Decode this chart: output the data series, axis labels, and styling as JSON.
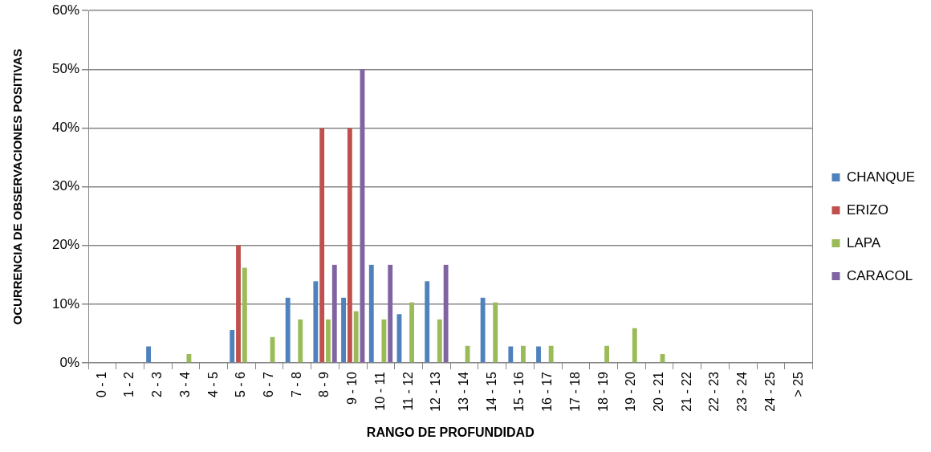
{
  "chart_data": {
    "type": "bar",
    "xlabel": "RANGO DE PROFUNDIDAD",
    "ylabel": "OCURRENCIA DE OBSERVACIONES POSITIVAS",
    "categories": [
      "0 - 1",
      "1 - 2",
      "2 - 3",
      "3 - 4",
      "4 - 5",
      "5 - 6",
      "6 - 7",
      "7 - 8",
      "8 - 9",
      "9 - 10",
      "10 - 11",
      "11 - 12",
      "12 - 13",
      "13 - 14",
      "14 - 15",
      "15 - 16",
      "16 - 17",
      "17 - 18",
      "18 - 19",
      "19 - 20",
      "20 - 21",
      "21 - 22",
      "22 - 23",
      "23 - 24",
      "24 - 25",
      "> 25"
    ],
    "series": [
      {
        "name": "CHANQUE",
        "color": "#4f81bd",
        "values": [
          0,
          0,
          2.8,
          0,
          0,
          5.6,
          0,
          11.1,
          13.9,
          11.1,
          16.7,
          8.3,
          13.9,
          0,
          11.1,
          2.8,
          2.8,
          0,
          0,
          0,
          0,
          0,
          0,
          0,
          0,
          0
        ]
      },
      {
        "name": "ERIZO",
        "color": "#c0504d",
        "values": [
          0,
          0,
          0,
          0,
          0,
          20,
          0,
          0,
          40,
          40,
          0,
          0,
          0,
          0,
          0,
          0,
          0,
          0,
          0,
          0,
          0,
          0,
          0,
          0,
          0,
          0
        ]
      },
      {
        "name": "LAPA",
        "color": "#9bbb59",
        "values": [
          0,
          0,
          0,
          1.5,
          0,
          16.2,
          4.4,
          7.4,
          7.4,
          8.8,
          7.4,
          10.3,
          7.4,
          2.9,
          10.3,
          2.9,
          2.9,
          0,
          2.9,
          5.9,
          1.5,
          0,
          0,
          0,
          0,
          0
        ]
      },
      {
        "name": "CARACOL",
        "color": "#8064a2",
        "values": [
          0,
          0,
          0,
          0,
          0,
          0,
          0,
          0,
          16.7,
          50,
          16.7,
          0,
          16.7,
          0,
          0,
          0,
          0,
          0,
          0,
          0,
          0,
          0,
          0,
          0,
          0,
          0
        ]
      }
    ],
    "ylim": [
      0,
      60
    ],
    "yticks": [
      {
        "value": 0,
        "label": "0%"
      },
      {
        "value": 10,
        "label": "10%"
      },
      {
        "value": 20,
        "label": "20%"
      },
      {
        "value": 30,
        "label": "30%"
      },
      {
        "value": 40,
        "label": "40%"
      },
      {
        "value": 50,
        "label": "50%"
      },
      {
        "value": 60,
        "label": "60%"
      }
    ],
    "grid": "y",
    "legend": "right"
  }
}
